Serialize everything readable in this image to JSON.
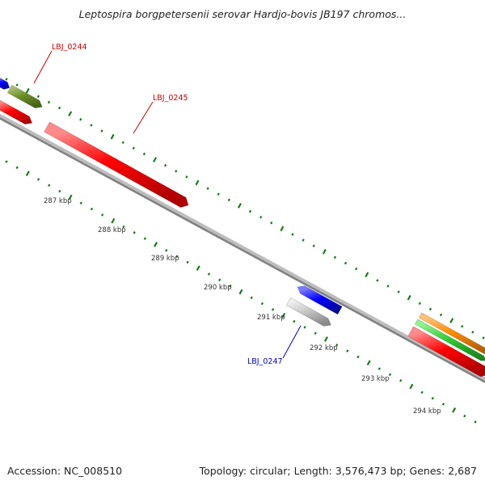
{
  "title": "Leptospira borgpetersenii serovar Hardjo-bovis JB197 chromos...",
  "footer": {
    "accession": "Accession: NC_008510",
    "summary": "Topology: circular; Length: 3,576,473 bp; Genes: 2,687"
  },
  "colors": {
    "backbone": "#808080",
    "tick": "#1a7a1a",
    "red_gene": "#ff0000",
    "blue_gene": "#0000ff",
    "olive_gene": "#6b8e23",
    "gray_gene": "#c0c0c0",
    "orange_gene": "#ff8c00",
    "green_gene": "#33cc33",
    "label_red": "#cc0000",
    "label_blue": "#0000cc"
  },
  "gene_labels": [
    {
      "id": "LBJ_0244",
      "color": "label_red"
    },
    {
      "id": "LBJ_0245",
      "color": "label_red"
    },
    {
      "id": "LBJ_0247",
      "color": "label_blue"
    }
  ],
  "position_labels": [
    "287 kbp",
    "288 kbp",
    "289 kbp",
    "290 kbp",
    "291 kbp",
    "292 kbp",
    "293 kbp",
    "294 kbp"
  ]
}
